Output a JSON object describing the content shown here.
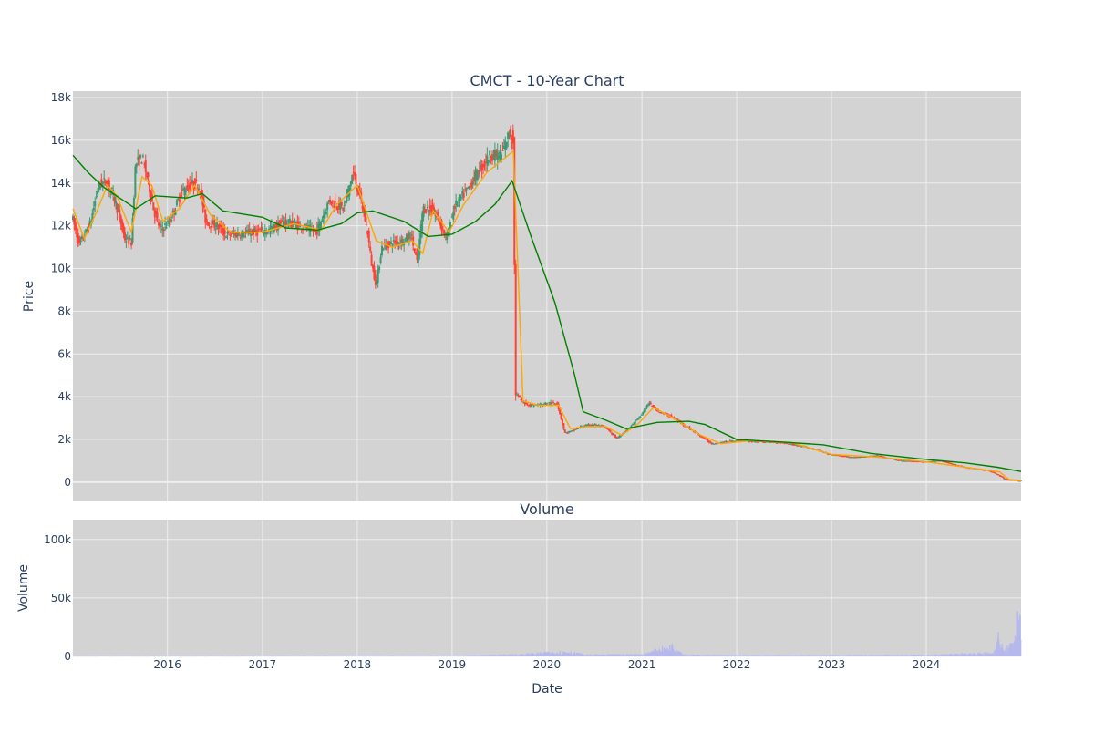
{
  "chart_data": [
    {
      "type": "candlestick",
      "title": "CMCT - 10-Year Chart",
      "xlabel": "",
      "ylabel": "Price",
      "ylim": [
        -900,
        18300
      ],
      "y_ticks": [
        0,
        2000,
        4000,
        6000,
        8000,
        10000,
        12000,
        14000,
        16000,
        18000
      ],
      "y_tick_labels": [
        "0",
        "2k",
        "4k",
        "6k",
        "8k",
        "10k",
        "12k",
        "14k",
        "16k",
        "18k"
      ],
      "xlim": [
        "2015-01-02",
        "2024-12-31"
      ],
      "grid": true,
      "colors": {
        "plot_bg": "#d3d3d3",
        "grid": "#eeeeee",
        "up": "#3d9970",
        "down": "#ff4136",
        "ma_short": "#ffa500",
        "ma_long": "#008000"
      },
      "price_path": [
        [
          "2015-01-02",
          12500
        ],
        [
          "2015-02-01",
          11100
        ],
        [
          "2015-03-15",
          12100
        ],
        [
          "2015-04-15",
          13900
        ],
        [
          "2015-05-15",
          14100
        ],
        [
          "2015-06-10",
          13500
        ],
        [
          "2015-07-01",
          12600
        ],
        [
          "2015-07-25",
          11400
        ],
        [
          "2015-08-20",
          11200
        ],
        [
          "2015-09-05",
          14900
        ],
        [
          "2015-10-01",
          15200
        ],
        [
          "2015-10-25",
          14000
        ],
        [
          "2015-11-15",
          12700
        ],
        [
          "2015-12-10",
          11800
        ],
        [
          "2016-01-15",
          12200
        ],
        [
          "2016-03-01",
          13600
        ],
        [
          "2016-04-15",
          14000
        ],
        [
          "2016-05-10",
          13800
        ],
        [
          "2016-06-01",
          12200
        ],
        [
          "2016-07-15",
          12000
        ],
        [
          "2016-08-15",
          11600
        ],
        [
          "2016-10-01",
          11600
        ],
        [
          "2016-12-01",
          11700
        ],
        [
          "2017-02-01",
          11800
        ],
        [
          "2017-04-01",
          12200
        ],
        [
          "2017-06-01",
          12000
        ],
        [
          "2017-08-01",
          11700
        ],
        [
          "2017-09-20",
          13200
        ],
        [
          "2017-11-15",
          12800
        ],
        [
          "2017-12-20",
          14500
        ],
        [
          "2018-01-20",
          13200
        ],
        [
          "2018-02-15",
          11700
        ],
        [
          "2018-03-01",
          10300
        ],
        [
          "2018-03-20",
          9200
        ],
        [
          "2018-04-10",
          11000
        ],
        [
          "2018-05-20",
          11200
        ],
        [
          "2018-07-01",
          11300
        ],
        [
          "2018-08-01",
          11600
        ],
        [
          "2018-08-25",
          10200
        ],
        [
          "2018-09-15",
          12800
        ],
        [
          "2018-10-15",
          12800
        ],
        [
          "2018-11-15",
          12300
        ],
        [
          "2018-12-15",
          11400
        ],
        [
          "2019-01-15",
          12900
        ],
        [
          "2019-03-01",
          13600
        ],
        [
          "2019-04-15",
          14500
        ],
        [
          "2019-06-01",
          15300
        ],
        [
          "2019-07-15",
          15300
        ],
        [
          "2019-08-15",
          16400
        ],
        [
          "2019-09-01",
          16000
        ],
        [
          "2019-09-05",
          4200
        ],
        [
          "2019-10-01",
          3800
        ],
        [
          "2019-11-01",
          3600
        ],
        [
          "2019-12-15",
          3650
        ],
        [
          "2020-01-15",
          3700
        ],
        [
          "2020-02-15",
          3700
        ],
        [
          "2020-03-15",
          2300
        ],
        [
          "2020-04-15",
          2400
        ],
        [
          "2020-05-15",
          2600
        ],
        [
          "2020-07-01",
          2700
        ],
        [
          "2020-08-15",
          2600
        ],
        [
          "2020-10-01",
          2050
        ],
        [
          "2020-11-15",
          2500
        ],
        [
          "2021-01-01",
          3100
        ],
        [
          "2021-02-01",
          3700
        ],
        [
          "2021-03-15",
          3300
        ],
        [
          "2021-05-01",
          3050
        ],
        [
          "2021-06-15",
          2700
        ],
        [
          "2021-08-15",
          2200
        ],
        [
          "2021-10-01",
          1800
        ],
        [
          "2022-01-01",
          1950
        ],
        [
          "2022-04-01",
          1900
        ],
        [
          "2022-07-01",
          1850
        ],
        [
          "2022-10-01",
          1650
        ],
        [
          "2023-01-01",
          1300
        ],
        [
          "2023-04-01",
          1150
        ],
        [
          "2023-07-01",
          1250
        ],
        [
          "2023-10-01",
          1000
        ],
        [
          "2024-01-01",
          950
        ],
        [
          "2024-03-01",
          1000
        ],
        [
          "2024-06-01",
          700
        ],
        [
          "2024-09-01",
          550
        ],
        [
          "2024-10-10",
          350
        ],
        [
          "2024-11-01",
          150
        ],
        [
          "2024-12-31",
          60
        ]
      ],
      "moving_average_short": [
        [
          "2015-01-02",
          12800
        ],
        [
          "2015-02-15",
          11400
        ],
        [
          "2015-04-01",
          12600
        ],
        [
          "2015-05-15",
          13900
        ],
        [
          "2015-06-20",
          13400
        ],
        [
          "2015-08-15",
          11700
        ],
        [
          "2015-09-25",
          14300
        ],
        [
          "2015-11-01",
          13900
        ],
        [
          "2015-12-15",
          12200
        ],
        [
          "2016-02-15",
          12800
        ],
        [
          "2016-04-15",
          13900
        ],
        [
          "2016-06-15",
          12500
        ],
        [
          "2016-09-01",
          11700
        ],
        [
          "2017-01-01",
          11700
        ],
        [
          "2017-05-01",
          12100
        ],
        [
          "2017-08-15",
          11800
        ],
        [
          "2017-10-15",
          13000
        ],
        [
          "2018-01-01",
          13900
        ],
        [
          "2018-03-15",
          11300
        ],
        [
          "2018-05-15",
          11000
        ],
        [
          "2018-08-01",
          11300
        ],
        [
          "2018-09-10",
          10700
        ],
        [
          "2018-10-20",
          12700
        ],
        [
          "2018-12-20",
          11700
        ],
        [
          "2019-02-15",
          13000
        ],
        [
          "2019-05-15",
          14500
        ],
        [
          "2019-08-15",
          15400
        ],
        [
          "2019-08-25",
          15500
        ],
        [
          "2019-10-01",
          3800
        ],
        [
          "2019-12-01",
          3600
        ],
        [
          "2020-02-15",
          3600
        ],
        [
          "2020-04-01",
          2500
        ],
        [
          "2020-06-01",
          2600
        ],
        [
          "2020-08-15",
          2600
        ],
        [
          "2020-10-15",
          2200
        ],
        [
          "2020-12-15",
          2700
        ],
        [
          "2021-02-15",
          3500
        ],
        [
          "2021-05-01",
          3000
        ],
        [
          "2021-08-15",
          2200
        ],
        [
          "2021-11-01",
          1800
        ],
        [
          "2022-03-01",
          1950
        ],
        [
          "2022-08-01",
          1850
        ],
        [
          "2023-01-01",
          1300
        ],
        [
          "2023-06-01",
          1200
        ],
        [
          "2024-01-01",
          950
        ],
        [
          "2024-06-01",
          700
        ],
        [
          "2024-10-10",
          480
        ],
        [
          "2024-11-15",
          130
        ],
        [
          "2024-12-31",
          70
        ]
      ],
      "moving_average_long": [
        [
          "2015-01-02",
          15300
        ],
        [
          "2015-03-01",
          14500
        ],
        [
          "2015-05-01",
          13800
        ],
        [
          "2015-07-01",
          13300
        ],
        [
          "2015-09-01",
          12800
        ],
        [
          "2015-11-15",
          13400
        ],
        [
          "2016-03-15",
          13300
        ],
        [
          "2016-05-15",
          13500
        ],
        [
          "2016-08-01",
          12700
        ],
        [
          "2017-01-01",
          12400
        ],
        [
          "2017-04-01",
          11900
        ],
        [
          "2017-08-01",
          11800
        ],
        [
          "2017-11-01",
          12100
        ],
        [
          "2018-01-01",
          12600
        ],
        [
          "2018-03-01",
          12700
        ],
        [
          "2018-07-01",
          12200
        ],
        [
          "2018-10-01",
          11500
        ],
        [
          "2019-01-01",
          11600
        ],
        [
          "2019-04-01",
          12200
        ],
        [
          "2019-06-15",
          13000
        ],
        [
          "2019-08-20",
          14100
        ],
        [
          "2019-11-01",
          11500
        ],
        [
          "2020-02-01",
          8400
        ],
        [
          "2020-04-15",
          5100
        ],
        [
          "2020-05-20",
          3300
        ],
        [
          "2020-08-15",
          2900
        ],
        [
          "2020-11-01",
          2500
        ],
        [
          "2021-03-01",
          2800
        ],
        [
          "2021-07-01",
          2850
        ],
        [
          "2021-09-01",
          2700
        ],
        [
          "2022-01-01",
          2000
        ],
        [
          "2022-06-01",
          1900
        ],
        [
          "2022-12-01",
          1750
        ],
        [
          "2023-06-01",
          1350
        ],
        [
          "2023-12-01",
          1100
        ],
        [
          "2024-06-01",
          900
        ],
        [
          "2024-10-01",
          700
        ],
        [
          "2024-12-31",
          500
        ]
      ]
    },
    {
      "type": "bar",
      "title": "Volume",
      "xlabel": "Date",
      "ylabel": "Volume",
      "ylim": [
        0,
        117000
      ],
      "y_ticks": [
        0,
        50000,
        100000
      ],
      "y_tick_labels": [
        "0",
        "50k",
        "100k"
      ],
      "x_ticks": [
        "2016-01-01",
        "2017-01-01",
        "2018-01-01",
        "2019-01-01",
        "2020-01-01",
        "2021-01-01",
        "2022-01-01",
        "2023-01-01",
        "2024-01-01"
      ],
      "x_tick_labels": [
        "2016",
        "2017",
        "2018",
        "2019",
        "2020",
        "2021",
        "2022",
        "2023",
        "2024"
      ],
      "grid": true,
      "colors": {
        "plot_bg": "#d3d3d3",
        "grid": "#eeeeee",
        "bar": "#b4b8ec"
      },
      "volume_path": [
        [
          "2015-01-02",
          300
        ],
        [
          "2016-01-01",
          300
        ],
        [
          "2017-01-01",
          400
        ],
        [
          "2018-01-01",
          500
        ],
        [
          "2019-01-01",
          500
        ],
        [
          "2019-09-15",
          1400
        ],
        [
          "2020-03-15",
          3500
        ],
        [
          "2020-06-01",
          1200
        ],
        [
          "2021-01-01",
          1500
        ],
        [
          "2021-05-01",
          7500
        ],
        [
          "2021-06-15",
          1200
        ],
        [
          "2022-01-01",
          800
        ],
        [
          "2023-01-01",
          900
        ],
        [
          "2024-01-01",
          1000
        ],
        [
          "2024-09-15",
          2500
        ],
        [
          "2024-10-05",
          14000
        ],
        [
          "2024-10-25",
          4000
        ],
        [
          "2024-12-01",
          9000
        ],
        [
          "2024-12-15",
          28000
        ],
        [
          "2024-12-31",
          33000
        ]
      ]
    }
  ]
}
